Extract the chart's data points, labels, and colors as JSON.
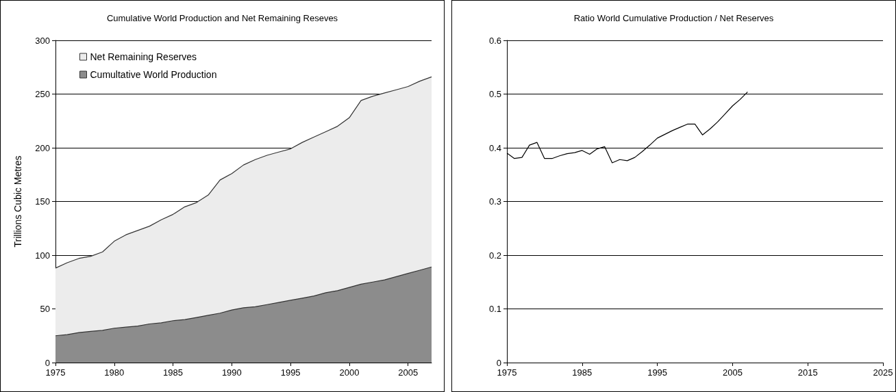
{
  "chart_data": [
    {
      "type": "area",
      "title": "Cumulative World Production and Net Remaining Reseves",
      "ylabel": "Trillions Cubic Metres",
      "stacked": true,
      "legend": "top left",
      "grid": "y",
      "x": [
        1975,
        1976,
        1977,
        1978,
        1979,
        1980,
        1981,
        1982,
        1983,
        1984,
        1985,
        1986,
        1987,
        1988,
        1989,
        1990,
        1991,
        1992,
        1993,
        1994,
        1995,
        1996,
        1997,
        1998,
        1999,
        2000,
        2001,
        2002,
        2003,
        2004,
        2005,
        2006,
        2007
      ],
      "xlim": [
        1975,
        2007
      ],
      "xticks": [
        1975,
        1980,
        1985,
        1990,
        1995,
        2000,
        2005
      ],
      "ylim": [
        0,
        300
      ],
      "yticks": [
        0,
        50,
        100,
        150,
        200,
        250,
        300
      ],
      "series": [
        {
          "name": "Cumultative World Production",
          "color": "#8c8c8c",
          "values": [
            25,
            26,
            28,
            29,
            30,
            32,
            33,
            34,
            36,
            37,
            39,
            40,
            42,
            44,
            46,
            49,
            51,
            52,
            54,
            56,
            58,
            60,
            62,
            65,
            67,
            70,
            73,
            75,
            77,
            80,
            83,
            86,
            89
          ]
        },
        {
          "name": "Net Remaining Reserves",
          "color": "#ececec",
          "values": [
            63,
            67,
            69,
            70,
            73,
            81,
            86,
            89,
            91,
            96,
            99,
            105,
            107,
            112,
            124,
            127,
            133,
            137,
            139,
            140,
            141,
            145,
            148,
            150,
            153,
            158,
            171,
            173,
            174,
            174,
            174,
            176,
            177
          ]
        }
      ]
    },
    {
      "type": "line",
      "title": "Ratio World Cumulative Production / Net Reserves",
      "grid": "y",
      "legend": false,
      "marker": "none",
      "x": [
        1975,
        1976,
        1977,
        1978,
        1979,
        1980,
        1981,
        1982,
        1983,
        1984,
        1985,
        1986,
        1987,
        1988,
        1989,
        1990,
        1991,
        1992,
        1993,
        1994,
        1995,
        1996,
        1997,
        1998,
        1999,
        2000,
        2001,
        2002,
        2003,
        2004,
        2005,
        2006,
        2007
      ],
      "xlim": [
        1975,
        2025
      ],
      "xticks": [
        1975,
        1985,
        1995,
        2005,
        2015,
        2025
      ],
      "ylim": [
        0,
        0.6
      ],
      "yticks": [
        0,
        0.1,
        0.2,
        0.3,
        0.4,
        0.5,
        0.6
      ],
      "series": [
        {
          "color": "#000000",
          "values": [
            0.39,
            0.38,
            0.382,
            0.405,
            0.41,
            0.38,
            0.38,
            0.385,
            0.389,
            0.391,
            0.395,
            0.388,
            0.398,
            0.402,
            0.372,
            0.378,
            0.376,
            0.382,
            0.393,
            0.405,
            0.418,
            0.425,
            0.432,
            0.438,
            0.444,
            0.444,
            0.424,
            0.435,
            0.448,
            0.463,
            0.478,
            0.49,
            0.504
          ]
        }
      ]
    }
  ]
}
